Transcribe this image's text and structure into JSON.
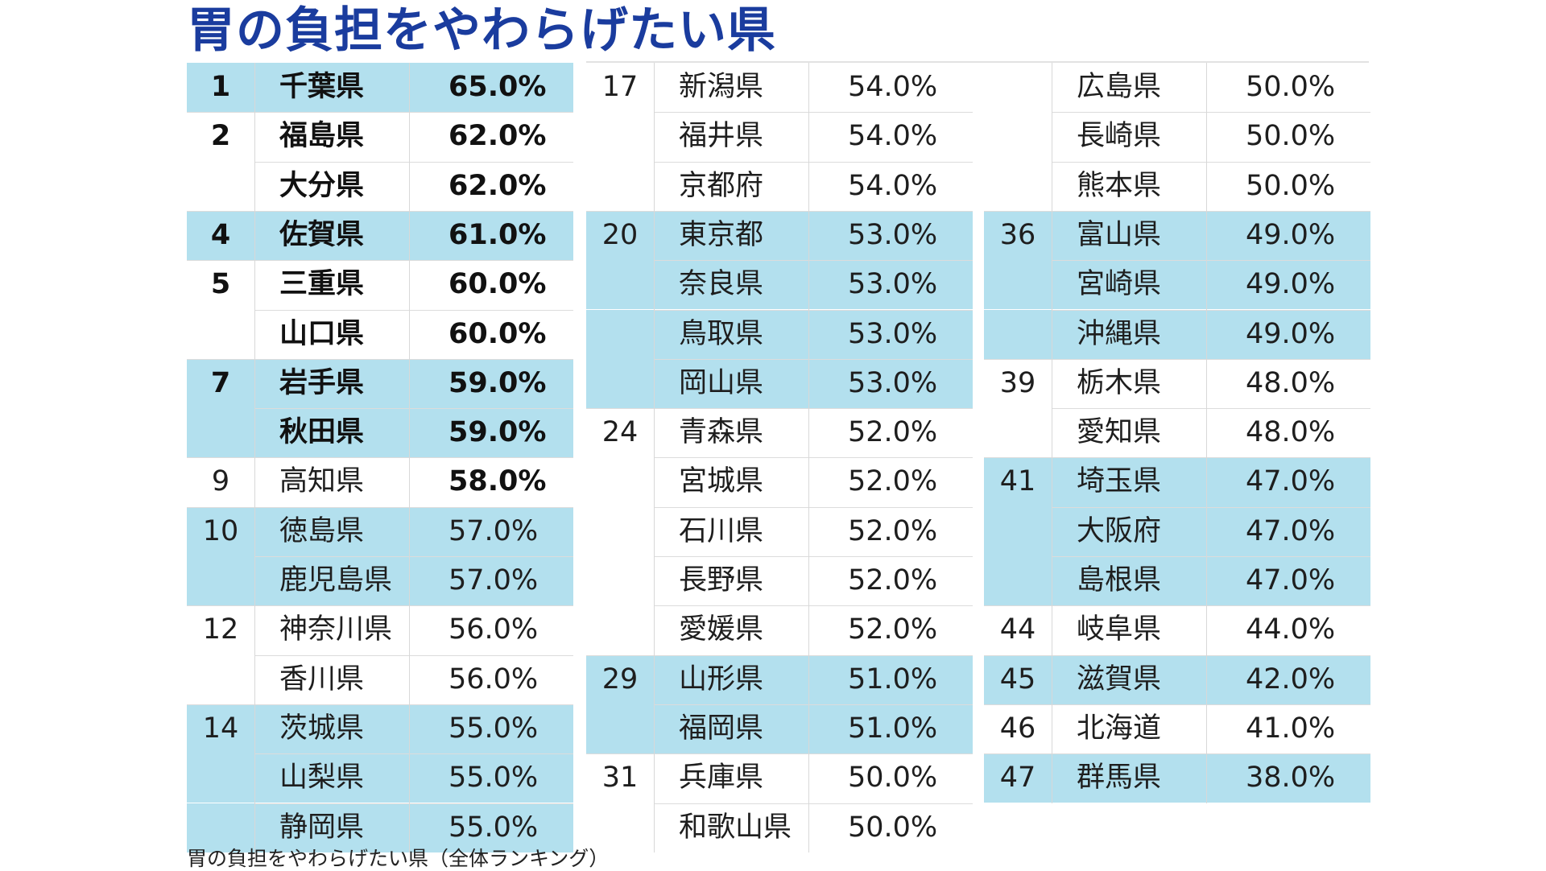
{
  "title": "胃の負担をやわらげたい県",
  "caption": "胃の負担をやわらげたい県（全体ランキング）",
  "colors": {
    "title": "#1a3c9e",
    "highlight": "#b3e0ee"
  },
  "columns": [
    [
      {
        "rank": "1",
        "pref": "千葉県",
        "pct": "65.0%",
        "hl": true,
        "pref_bold": true,
        "pct_bold": true
      },
      {
        "rank": "2",
        "pref": "福島県",
        "pct": "62.0%",
        "hl": false,
        "pref_bold": true,
        "pct_bold": true
      },
      {
        "rank": "",
        "pref": "大分県",
        "pct": "62.0%",
        "hl": false,
        "pref_bold": true,
        "pct_bold": true
      },
      {
        "rank": "4",
        "pref": "佐賀県",
        "pct": "61.0%",
        "hl": true,
        "pref_bold": true,
        "pct_bold": true
      },
      {
        "rank": "5",
        "pref": "三重県",
        "pct": "60.0%",
        "hl": false,
        "pref_bold": true,
        "pct_bold": true
      },
      {
        "rank": "",
        "pref": "山口県",
        "pct": "60.0%",
        "hl": false,
        "pref_bold": true,
        "pct_bold": true
      },
      {
        "rank": "7",
        "pref": "岩手県",
        "pct": "59.0%",
        "hl": true,
        "pref_bold": true,
        "pct_bold": true
      },
      {
        "rank": "",
        "pref": "秋田県",
        "pct": "59.0%",
        "hl": true,
        "pref_bold": true,
        "pct_bold": true
      },
      {
        "rank": "9",
        "pref": "高知県",
        "pct": "58.0%",
        "hl": false,
        "pref_bold": false,
        "pct_bold": true
      },
      {
        "rank": "10",
        "pref": "徳島県",
        "pct": "57.0%",
        "hl": true,
        "pref_bold": false,
        "pct_bold": false
      },
      {
        "rank": "",
        "pref": "鹿児島県",
        "pct": "57.0%",
        "hl": true,
        "pref_bold": false,
        "pct_bold": false
      },
      {
        "rank": "12",
        "pref": "神奈川県",
        "pct": "56.0%",
        "hl": false,
        "pref_bold": false,
        "pct_bold": false
      },
      {
        "rank": "",
        "pref": "香川県",
        "pct": "56.0%",
        "hl": false,
        "pref_bold": false,
        "pct_bold": false
      },
      {
        "rank": "14",
        "pref": "茨城県",
        "pct": "55.0%",
        "hl": true,
        "pref_bold": false,
        "pct_bold": false
      },
      {
        "rank": "",
        "pref": "山梨県",
        "pct": "55.0%",
        "hl": true,
        "pref_bold": false,
        "pct_bold": false
      },
      {
        "rank": "",
        "pref": "静岡県",
        "pct": "55.0%",
        "hl": true,
        "pref_bold": false,
        "pct_bold": false
      }
    ],
    [
      {
        "rank": "17",
        "pref": "新潟県",
        "pct": "54.0%",
        "hl": false
      },
      {
        "rank": "",
        "pref": "福井県",
        "pct": "54.0%",
        "hl": false
      },
      {
        "rank": "",
        "pref": "京都府",
        "pct": "54.0%",
        "hl": false
      },
      {
        "rank": "20",
        "pref": "東京都",
        "pct": "53.0%",
        "hl": true
      },
      {
        "rank": "",
        "pref": "奈良県",
        "pct": "53.0%",
        "hl": true
      },
      {
        "rank": "",
        "pref": "鳥取県",
        "pct": "53.0%",
        "hl": true
      },
      {
        "rank": "",
        "pref": "岡山県",
        "pct": "53.0%",
        "hl": true
      },
      {
        "rank": "24",
        "pref": "青森県",
        "pct": "52.0%",
        "hl": false
      },
      {
        "rank": "",
        "pref": "宮城県",
        "pct": "52.0%",
        "hl": false
      },
      {
        "rank": "",
        "pref": "石川県",
        "pct": "52.0%",
        "hl": false
      },
      {
        "rank": "",
        "pref": "長野県",
        "pct": "52.0%",
        "hl": false
      },
      {
        "rank": "",
        "pref": "愛媛県",
        "pct": "52.0%",
        "hl": false
      },
      {
        "rank": "29",
        "pref": "山形県",
        "pct": "51.0%",
        "hl": true
      },
      {
        "rank": "",
        "pref": "福岡県",
        "pct": "51.0%",
        "hl": true
      },
      {
        "rank": "31",
        "pref": "兵庫県",
        "pct": "50.0%",
        "hl": false
      },
      {
        "rank": "",
        "pref": "和歌山県",
        "pct": "50.0%",
        "hl": false
      }
    ],
    [
      {
        "rank": "",
        "pref": "広島県",
        "pct": "50.0%",
        "hl": false
      },
      {
        "rank": "",
        "pref": "長崎県",
        "pct": "50.0%",
        "hl": false
      },
      {
        "rank": "",
        "pref": "熊本県",
        "pct": "50.0%",
        "hl": false
      },
      {
        "rank": "36",
        "pref": "富山県",
        "pct": "49.0%",
        "hl": true
      },
      {
        "rank": "",
        "pref": "宮崎県",
        "pct": "49.0%",
        "hl": true
      },
      {
        "rank": "",
        "pref": "沖縄県",
        "pct": "49.0%",
        "hl": true
      },
      {
        "rank": "39",
        "pref": "栃木県",
        "pct": "48.0%",
        "hl": false
      },
      {
        "rank": "",
        "pref": "愛知県",
        "pct": "48.0%",
        "hl": false
      },
      {
        "rank": "41",
        "pref": "埼玉県",
        "pct": "47.0%",
        "hl": true
      },
      {
        "rank": "",
        "pref": "大阪府",
        "pct": "47.0%",
        "hl": true
      },
      {
        "rank": "",
        "pref": "島根県",
        "pct": "47.0%",
        "hl": true
      },
      {
        "rank": "44",
        "pref": "岐阜県",
        "pct": "44.0%",
        "hl": false
      },
      {
        "rank": "45",
        "pref": "滋賀県",
        "pct": "42.0%",
        "hl": true
      },
      {
        "rank": "46",
        "pref": "北海道",
        "pct": "41.0%",
        "hl": false
      },
      {
        "rank": "47",
        "pref": "群馬県",
        "pct": "38.0%",
        "hl": true
      }
    ]
  ]
}
